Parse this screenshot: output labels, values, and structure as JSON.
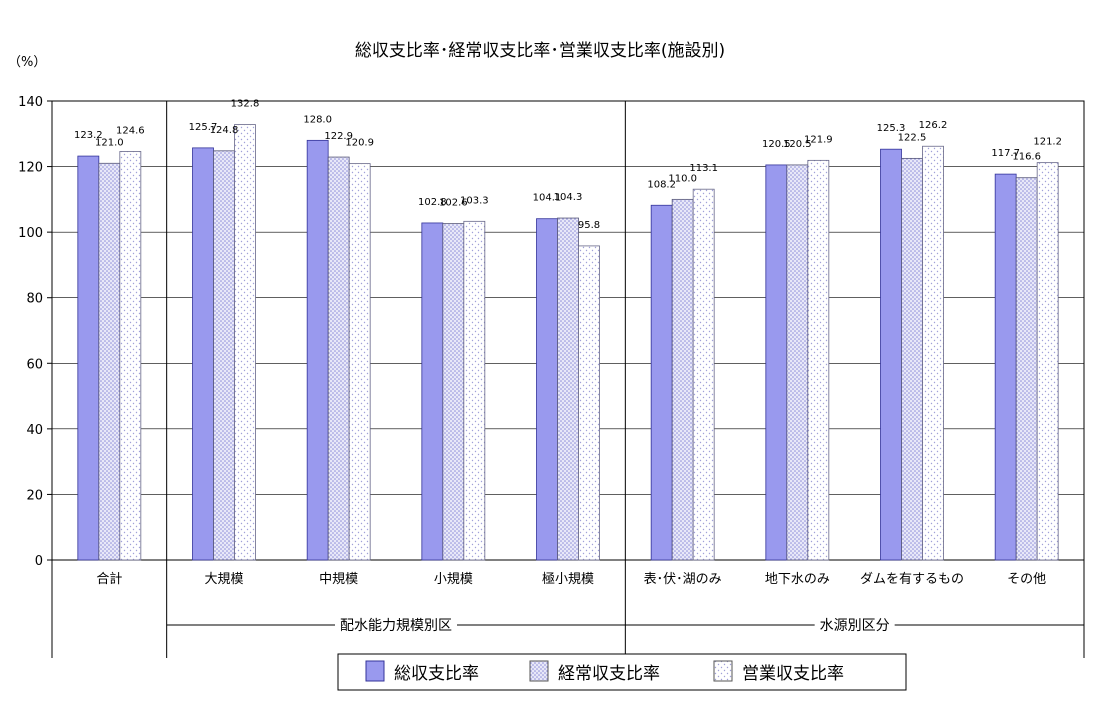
{
  "chart_data": {
    "type": "bar",
    "title": "総収支比率･経常収支比率･営業収支比率(施設別)",
    "unit_label": "（%）",
    "ylim": [
      0,
      140
    ],
    "yticks": [
      0,
      20,
      40,
      60,
      80,
      100,
      120,
      140
    ],
    "grid": true,
    "legend_position": "bottom",
    "categories": [
      "合計",
      "大規模",
      "中規模",
      "小規模",
      "極小規模",
      "表･伏･湖のみ",
      "地下水のみ",
      "ダムを有するもの",
      "その他"
    ],
    "series": [
      {
        "name": "総収支比率",
        "values": [
          123.2,
          125.7,
          128.0,
          102.8,
          104.1,
          108.2,
          120.5,
          125.3,
          117.7
        ]
      },
      {
        "name": "経常収支比率",
        "values": [
          121.0,
          124.8,
          122.9,
          102.6,
          104.3,
          110.0,
          120.5,
          122.5,
          116.6
        ]
      },
      {
        "name": "営業収支比率",
        "values": [
          124.6,
          132.8,
          120.9,
          103.3,
          95.8,
          113.1,
          121.9,
          126.2,
          121.2
        ]
      }
    ],
    "groups": [
      {
        "label": "配水能力規模別区",
        "from": 1,
        "to": 4
      },
      {
        "label": "水源別区分",
        "from": 5,
        "to": 8
      }
    ],
    "colors": {
      "series1_fill": "#9999ee",
      "series1_stroke": "#333399",
      "series2_fill": "#e8e8f8",
      "series2_dot": "#8c8cd8",
      "series3_fill": "#ffffff",
      "series3_dot": "#a0a0d8",
      "grid": "#000000"
    }
  }
}
